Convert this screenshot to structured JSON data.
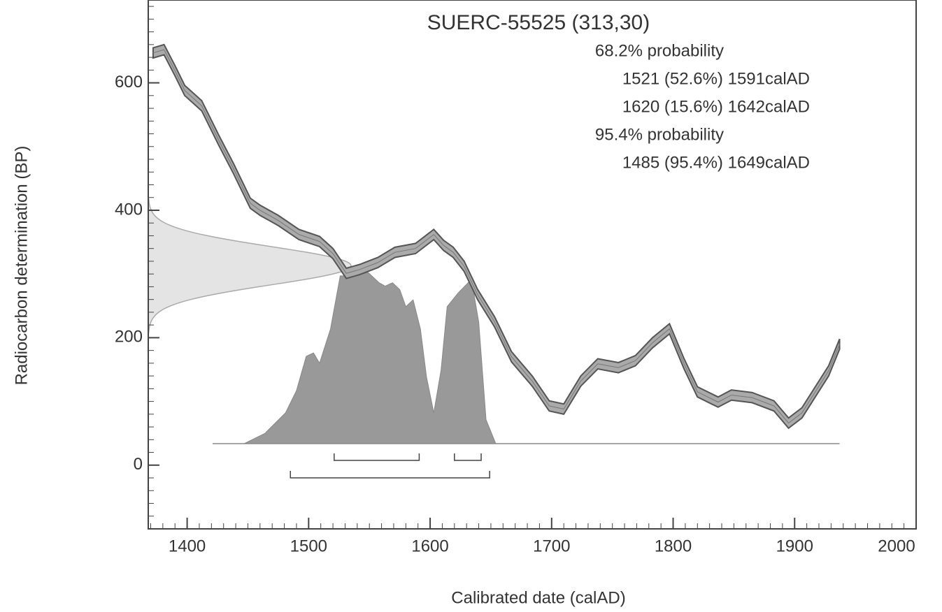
{
  "chart_data": {
    "type": "calibration",
    "title": "SUERC-55525 (313,30)",
    "x_label": "Calibrated date (calAD)",
    "y_label": "Radiocarbon determination (BP)",
    "xlim": [
      1368,
      2000
    ],
    "ylim": [
      -100,
      730
    ],
    "xticks": [
      1400,
      1500,
      1600,
      1700,
      1800,
      1900,
      2000
    ],
    "yticks": [
      0,
      200,
      400,
      600
    ],
    "measurement": {
      "mean": 313,
      "error": 30
    },
    "curve": {
      "x": [
        1372,
        1381,
        1390,
        1398,
        1412,
        1426,
        1438,
        1452,
        1460,
        1475,
        1492,
        1509,
        1520,
        1531,
        1542,
        1557,
        1571,
        1588,
        1603,
        1611,
        1619,
        1628,
        1639,
        1653,
        1667,
        1684,
        1698,
        1710,
        1724,
        1738,
        1755,
        1769,
        1783,
        1797,
        1809,
        1820,
        1837,
        1848,
        1865,
        1883,
        1895,
        1906,
        1917,
        1928,
        1937
      ],
      "values": [
        647,
        652,
        619,
        588,
        564,
        510,
        466,
        411,
        400,
        384,
        362,
        351,
        332,
        301,
        307,
        318,
        334,
        340,
        362,
        345,
        334,
        312,
        268,
        225,
        170,
        132,
        93,
        88,
        132,
        159,
        153,
        164,
        192,
        214,
        159,
        115,
        99,
        110,
        106,
        93,
        66,
        82,
        115,
        148,
        190
      ],
      "error": 8
    },
    "distribution": {
      "x": [
        1447,
        1464,
        1481,
        1490,
        1498,
        1504,
        1509,
        1518,
        1526,
        1538,
        1549,
        1558,
        1563,
        1569,
        1575,
        1580,
        1586,
        1592,
        1597,
        1603,
        1609,
        1614,
        1623,
        1634,
        1640,
        1646,
        1654
      ],
      "values": [
        0,
        6,
        18,
        31,
        51,
        53,
        47,
        67,
        98,
        98,
        100,
        94,
        92,
        94,
        90,
        80,
        84,
        67,
        39,
        18,
        43,
        80,
        88,
        96,
        71,
        14,
        0
      ]
    },
    "intervals": [
      {
        "probability": "68.2% probability",
        "ranges": [
          {
            "from": 1521,
            "to": 1591,
            "label": "1521 (52.6%) 1591calAD"
          },
          {
            "from": 1620,
            "to": 1642,
            "label": "1620 (15.6%) 1642calAD"
          }
        ]
      },
      {
        "probability": "95.4% probability",
        "ranges": [
          {
            "from": 1485,
            "to": 1649,
            "label": "1485 (95.4%) 1649calAD"
          }
        ]
      }
    ]
  }
}
